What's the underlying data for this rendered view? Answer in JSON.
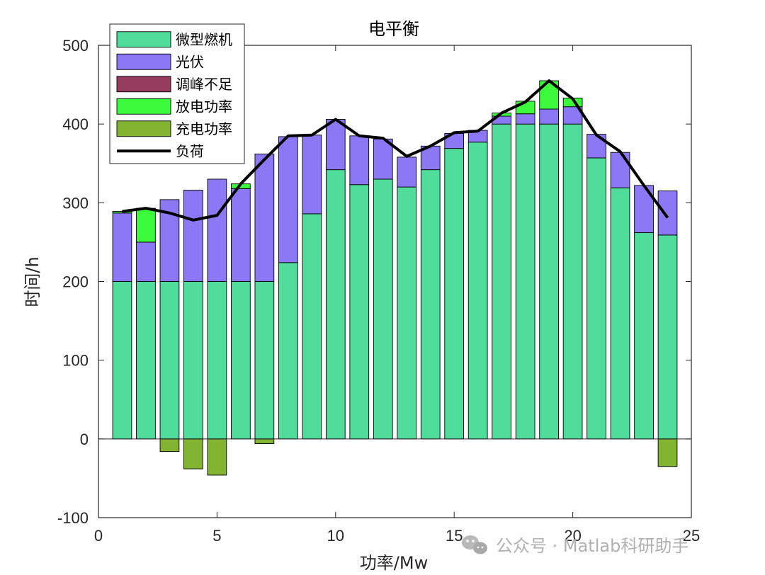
{
  "chart_data": {
    "type": "bar",
    "title": "电平衡",
    "xlabel": "功率/Mw",
    "ylabel": "时间/h",
    "xlim": [
      0,
      25
    ],
    "ylim": [
      -100,
      500
    ],
    "xticks": [
      "0",
      "5",
      "10",
      "15",
      "20",
      "25"
    ],
    "yticks": [
      "-100",
      "0",
      "100",
      "200",
      "300",
      "400",
      "500"
    ],
    "grid": false,
    "legend_position": "top-left",
    "categories": [
      1,
      2,
      3,
      4,
      5,
      6,
      7,
      8,
      9,
      10,
      11,
      12,
      13,
      14,
      15,
      16,
      17,
      18,
      19,
      20,
      21,
      22,
      23,
      24
    ],
    "series": [
      {
        "name": "微型燃机",
        "color": "#50DC9B",
        "values": [
          200,
          200,
          200,
          200,
          200,
          200,
          200,
          224,
          286,
          342,
          323,
          330,
          320,
          342,
          369,
          377,
          400,
          400,
          400,
          400,
          357,
          319,
          262,
          259
        ]
      },
      {
        "name": "光伏",
        "color": "#8C78F5",
        "values": [
          87,
          50,
          104,
          116,
          130,
          118,
          162,
          160,
          100,
          64,
          62,
          51,
          38,
          30,
          19,
          15,
          10,
          13,
          19,
          22,
          30,
          45,
          60,
          56
        ]
      },
      {
        "name": "调峰不足",
        "color": "#963C5F",
        "values": [
          0,
          0,
          0,
          0,
          0,
          0,
          0,
          0,
          0,
          0,
          0,
          0,
          0,
          0,
          0,
          0,
          0,
          0,
          0,
          0,
          0,
          0,
          0,
          0
        ]
      },
      {
        "name": "放电功率",
        "color": "#3CFA3C",
        "values": [
          2,
          43,
          0,
          0,
          0,
          6,
          0,
          0,
          0,
          0,
          0,
          0,
          0,
          0,
          0,
          0,
          4,
          16,
          36,
          11,
          0,
          0,
          0,
          0
        ]
      },
      {
        "name": "充电功率",
        "color": "#82B432",
        "values": [
          0,
          0,
          -16,
          -38,
          -46,
          0,
          -6,
          0,
          0,
          0,
          0,
          0,
          0,
          0,
          0,
          0,
          0,
          0,
          0,
          0,
          0,
          0,
          0,
          -35
        ]
      },
      {
        "name": "负荷",
        "color": "#000000",
        "type": "line",
        "values": [
          289,
          293,
          287,
          278,
          284,
          324,
          355,
          385,
          386,
          406,
          385,
          382,
          359,
          372,
          389,
          391,
          414,
          428,
          455,
          432,
          386,
          365,
          322,
          281
        ]
      }
    ]
  },
  "watermark": "公众号 · Matlab科研助手"
}
